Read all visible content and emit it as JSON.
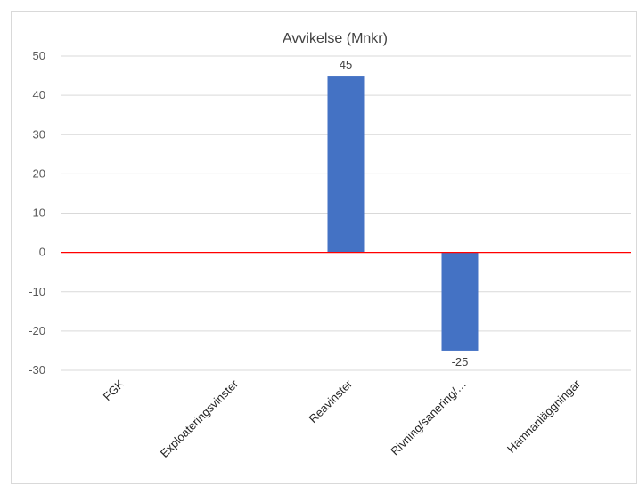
{
  "chart_data": {
    "type": "bar",
    "title": "Avvikelse (Mnkr)",
    "xlabel": "",
    "ylabel": "",
    "categories": [
      "FGK",
      "Exploateringsvinster",
      "Reavinster",
      "Rivning/sanering/…",
      "Hamnanläggningar"
    ],
    "values": [
      0,
      0,
      45,
      -25,
      0
    ],
    "data_labels": [
      "",
      "",
      "45",
      "-25",
      ""
    ],
    "ylim": [
      -30,
      50
    ],
    "yticks": [
      50,
      40,
      30,
      20,
      10,
      0,
      -10,
      -20,
      -30
    ],
    "grid": true,
    "legend": "none",
    "colors": {
      "bar": "#4472c4",
      "zero_line": "#ff0000",
      "grid": "#d9d9d9"
    }
  }
}
